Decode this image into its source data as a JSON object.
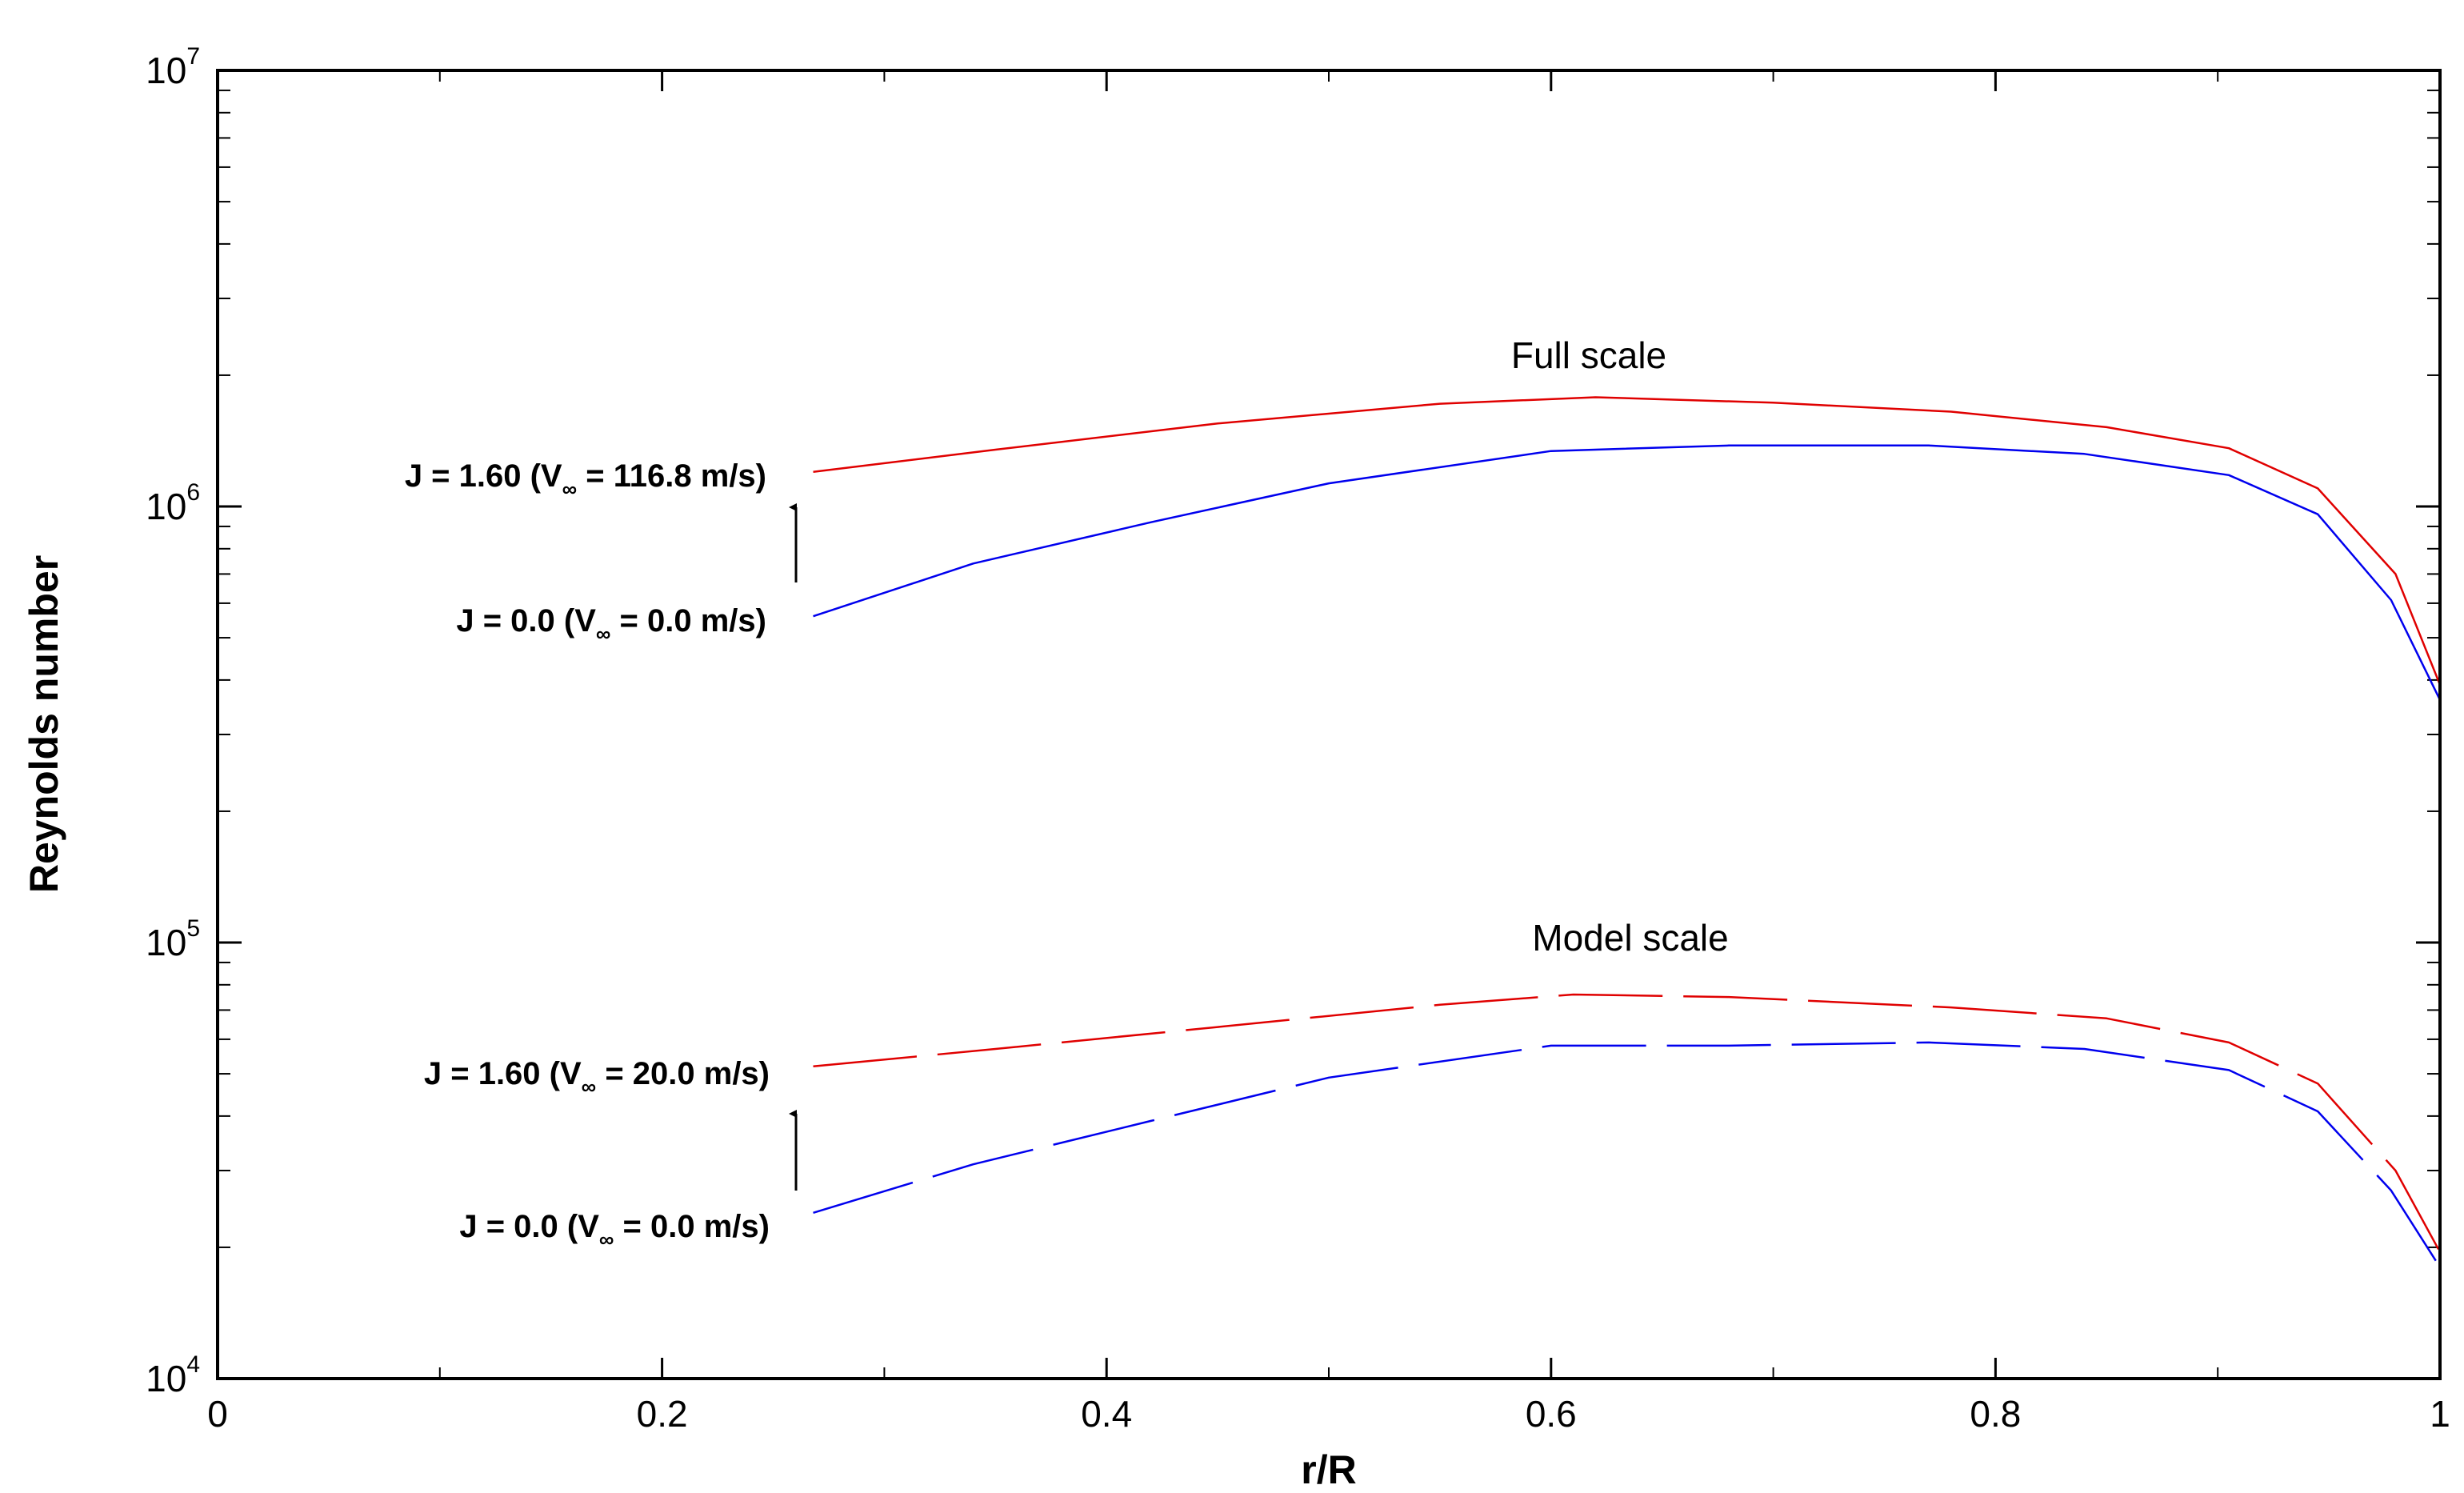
{
  "chart_data": {
    "type": "line",
    "title": "",
    "xlabel": "r/R",
    "ylabel": "Reynolds number",
    "yscale": "log",
    "xlim": [
      0,
      1
    ],
    "ylim": [
      10000,
      10000000
    ],
    "grid": false,
    "x_ticks": [
      {
        "value": 0,
        "label": "0"
      },
      {
        "value": 0.2,
        "label": "0.2"
      },
      {
        "value": 0.4,
        "label": "0.4"
      },
      {
        "value": 0.6,
        "label": "0.6"
      },
      {
        "value": 0.8,
        "label": "0.8"
      },
      {
        "value": 1,
        "label": "1"
      }
    ],
    "y_ticks": [
      {
        "value": 10000,
        "base": "10",
        "exp": "4"
      },
      {
        "value": 100000,
        "base": "10",
        "exp": "5"
      },
      {
        "value": 1000000,
        "base": "10",
        "exp": "6"
      },
      {
        "value": 10000000,
        "base": "10",
        "exp": "7"
      }
    ],
    "series": [
      {
        "name": "Full scale J = 1.60",
        "color": "#e00000",
        "dash": false,
        "x": [
          0.268,
          0.35,
          0.45,
          0.55,
          0.62,
          0.7,
          0.78,
          0.85,
          0.905,
          0.945,
          0.98,
          1.0
        ],
        "y": [
          1200000,
          1350000,
          1550000,
          1720000,
          1780000,
          1730000,
          1650000,
          1520000,
          1360000,
          1100000,
          700000,
          390000
        ]
      },
      {
        "name": "Full scale J = 0.0",
        "color": "#0000ee",
        "dash": false,
        "x": [
          0.268,
          0.34,
          0.42,
          0.5,
          0.6,
          0.68,
          0.77,
          0.84,
          0.905,
          0.945,
          0.978,
          1.0
        ],
        "y": [
          560000,
          740000,
          920000,
          1130000,
          1340000,
          1380000,
          1380000,
          1320000,
          1180000,
          960000,
          610000,
          360000
        ]
      },
      {
        "name": "Model scale J = 1.60",
        "color": "#e00000",
        "dash": true,
        "x": [
          0.268,
          0.35,
          0.45,
          0.55,
          0.61,
          0.68,
          0.78,
          0.85,
          0.905,
          0.945,
          0.98,
          1.0
        ],
        "y": [
          52000,
          57000,
          64000,
          72000,
          76000,
          75000,
          71000,
          67000,
          59000,
          47500,
          30000,
          19500
        ]
      },
      {
        "name": "Model scale J = 0.0",
        "color": "#0000ee",
        "dash": true,
        "x": [
          0.268,
          0.34,
          0.42,
          0.5,
          0.6,
          0.68,
          0.77,
          0.84,
          0.905,
          0.945,
          0.978,
          1.0
        ],
        "y": [
          24000,
          31000,
          39000,
          49000,
          58000,
          58000,
          59000,
          57000,
          51000,
          41000,
          27000,
          18000
        ]
      }
    ],
    "annotations": {
      "full_scale_title": "Full scale",
      "model_scale_title": "Model scale",
      "full_j160": {
        "pre": "J = 1.60 (V",
        "sub": "∞",
        "post": " = 116.8 m/s)"
      },
      "full_j00": {
        "pre": "J = 0.0 (V",
        "sub": "∞",
        "post": " = 0.0 m/s)"
      },
      "model_j160": {
        "pre": "J = 1.60 (V",
        "sub": "∞",
        "post": " = 20.0 m/s)"
      },
      "model_j00": {
        "pre": "J = 0.0 (V",
        "sub": "∞",
        "post": " = 0.0 m/s)"
      }
    }
  }
}
